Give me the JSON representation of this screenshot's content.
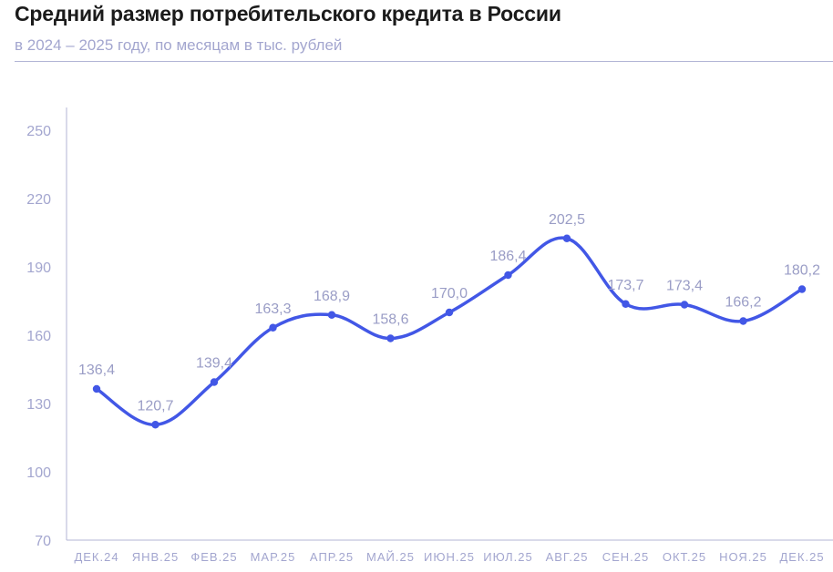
{
  "header": {
    "title": "Средний размер потребительского кредита в России",
    "subtitle": "в 2024 – 2025 году, по месяцам в тыс. рублей"
  },
  "colors": {
    "line": "#4257e6",
    "axis": "#b3b6d6",
    "label": "#a3a6cf"
  },
  "chart_data": {
    "type": "line",
    "title": "Средний размер потребительского кредита в России",
    "subtitle": "в 2024 – 2025 году, по месяцам в тыс. рублей",
    "xlabel": "",
    "ylabel": "",
    "categories": [
      "ДЕК.24",
      "ЯНВ.25",
      "ФЕВ.25",
      "МАР.25",
      "АПР.25",
      "МАЙ.25",
      "ИЮН.25",
      "ИЮЛ.25",
      "АВГ.25",
      "СЕН.25",
      "ОКТ.25",
      "НОЯ.25",
      "ДЕК.25"
    ],
    "series": [
      {
        "values": [
          136.4,
          120.7,
          139.4,
          163.3,
          168.9,
          158.6,
          170.0,
          186.4,
          202.5,
          173.7,
          173.4,
          166.2,
          180.2
        ],
        "data_labels": [
          "136,4",
          "120,7",
          "139,4",
          "163,3",
          "168,9",
          "158,6",
          "170,0",
          "186,4",
          "202,5",
          "173,7",
          "173,4",
          "166,2",
          "180,2"
        ]
      }
    ],
    "ylim": [
      70,
      250
    ],
    "yticks": [
      70,
      100,
      130,
      160,
      190,
      220,
      250
    ],
    "grid": false,
    "legend": "none",
    "smooth": true
  }
}
